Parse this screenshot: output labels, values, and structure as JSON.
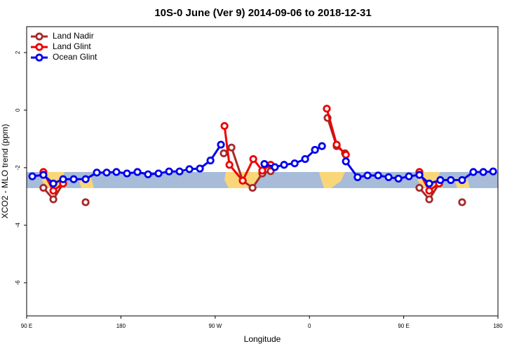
{
  "chart_data": {
    "type": "line",
    "title": "10S-0 June (Ver 9)   2014-09-06 to 2018-12-31",
    "x_label": "Longitude",
    "y_label": "XCO2 - MLO trend (ppm)",
    "xlim": [
      90,
      540
    ],
    "ylim": [
      -7.15,
      2.9
    ],
    "xticks": [
      {
        "value": 90,
        "label": "90 E"
      },
      {
        "value": 180,
        "label": "180"
      },
      {
        "value": 270,
        "label": "90 W"
      },
      {
        "value": 360,
        "label": "0"
      },
      {
        "value": 450,
        "label": "90 E"
      },
      {
        "value": 540,
        "label": "180"
      }
    ],
    "yticks": [
      -6,
      -4,
      -2,
      0,
      2
    ],
    "legend": "top-left",
    "series": [
      {
        "name": "Land Nadir",
        "color": "#a52a2a",
        "x": [
          106,
          115.5,
          124.8,
          null,
          146.3,
          null,
          278.2,
          285.6,
          296.3,
          305.7,
          315,
          323,
          null,
          377.3,
          386,
          394,
          null,
          465,
          474.4,
          483.8,
          null,
          505.8
        ],
        "values": [
          -2.7,
          -3.1,
          -2.55,
          null,
          -3.2,
          null,
          -1.5,
          -1.3,
          -2.45,
          -2.7,
          -2.2,
          -2.12,
          null,
          -0.27,
          -1.25,
          -1.5,
          null,
          -2.7,
          -3.1,
          -2.55,
          null,
          -3.2
        ]
      },
      {
        "name": "Land Glint",
        "color": "#ee0000",
        "x": [
          106,
          115.5,
          124.8,
          null,
          278.9,
          283.6,
          296.3,
          306.4,
          315,
          323,
          null,
          376.6,
          386,
          394.8,
          null,
          465,
          474.4,
          483.8
        ],
        "values": [
          -2.15,
          -2.8,
          -2.55,
          null,
          -0.55,
          -1.9,
          -2.45,
          -1.7,
          -2.1,
          -1.9,
          null,
          0.05,
          -1.2,
          -1.55,
          null,
          -2.15,
          -2.8,
          -2.55
        ]
      },
      {
        "name": "Ocean Glint",
        "color": "#0000ee",
        "x": [
          95.4,
          106,
          115.5,
          124.8,
          134.9,
          146.3,
          157,
          166.4,
          175.7,
          185.8,
          195.8,
          205.9,
          215.9,
          226,
          236,
          245.4,
          255.4,
          265.5,
          275.5,
          null,
          317,
          327,
          335.8,
          345.9,
          355.9,
          365.3,
          372,
          null,
          394.8,
          406,
          415.5,
          425.6,
          435.6,
          445,
          455,
          465,
          474.4,
          485,
          495,
          505.8,
          516.5,
          526,
          535.4
        ],
        "values": [
          -2.3,
          -2.25,
          -2.55,
          -2.4,
          -2.4,
          -2.4,
          -2.17,
          -2.17,
          -2.15,
          -2.2,
          -2.15,
          -2.23,
          -2.2,
          -2.13,
          -2.13,
          -2.05,
          -2.03,
          -1.75,
          -1.2,
          null,
          -1.87,
          -1.98,
          -1.9,
          -1.85,
          -1.7,
          -1.38,
          -1.25,
          null,
          -1.78,
          -2.33,
          -2.27,
          -2.27,
          -2.33,
          -2.38,
          -2.3,
          -2.25,
          -2.55,
          -2.43,
          -2.43,
          -2.43,
          -2.15,
          -2.15,
          -2.13
        ]
      }
    ]
  }
}
